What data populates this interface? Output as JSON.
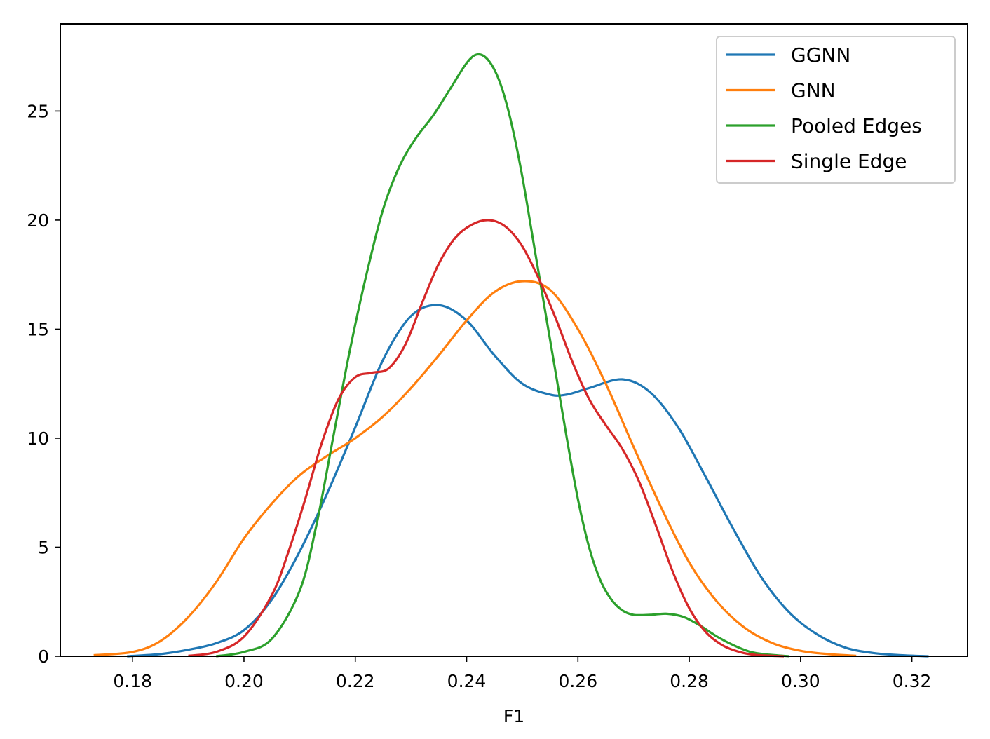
{
  "chart_data": {
    "type": "line",
    "title": "",
    "xlabel": "F1",
    "ylabel": "",
    "xlim": [
      0.167,
      0.33
    ],
    "ylim": [
      0,
      29
    ],
    "grid": false,
    "legend_position": "top-right",
    "x_ticks": [
      0.18,
      0.2,
      0.22,
      0.24,
      0.26,
      0.28,
      0.3,
      0.32
    ],
    "x_tick_labels": [
      "0.18",
      "0.20",
      "0.22",
      "0.24",
      "0.26",
      "0.28",
      "0.30",
      "0.32"
    ],
    "y_ticks": [
      0,
      5,
      10,
      15,
      20,
      25
    ],
    "y_tick_labels": [
      "0",
      "5",
      "10",
      "15",
      "20",
      "25"
    ],
    "series": [
      {
        "name": "GGNN",
        "color": "#1f77b4",
        "x": [
          0.179,
          0.185,
          0.19,
          0.195,
          0.2,
          0.205,
          0.21,
          0.215,
          0.22,
          0.225,
          0.23,
          0.235,
          0.24,
          0.245,
          0.25,
          0.255,
          0.258,
          0.262,
          0.268,
          0.273,
          0.278,
          0.283,
          0.288,
          0.293,
          0.298,
          0.303,
          0.308,
          0.313,
          0.318,
          0.323
        ],
        "y": [
          0.0,
          0.1,
          0.3,
          0.6,
          1.2,
          2.6,
          4.8,
          7.5,
          10.5,
          13.6,
          15.6,
          16.1,
          15.4,
          13.8,
          12.5,
          12.0,
          12.0,
          12.3,
          12.7,
          12.1,
          10.5,
          8.2,
          5.8,
          3.6,
          2.0,
          1.0,
          0.4,
          0.15,
          0.05,
          0.0
        ]
      },
      {
        "name": "GNN",
        "color": "#ff7f0e",
        "x": [
          0.173,
          0.18,
          0.185,
          0.19,
          0.195,
          0.2,
          0.205,
          0.21,
          0.215,
          0.22,
          0.225,
          0.23,
          0.235,
          0.24,
          0.245,
          0.25,
          0.255,
          0.26,
          0.265,
          0.27,
          0.275,
          0.28,
          0.285,
          0.29,
          0.295,
          0.3,
          0.305,
          0.31
        ],
        "y": [
          0.05,
          0.2,
          0.7,
          1.8,
          3.4,
          5.4,
          7.0,
          8.3,
          9.2,
          10.0,
          11.0,
          12.3,
          13.8,
          15.4,
          16.7,
          17.2,
          16.8,
          15.0,
          12.5,
          9.6,
          6.8,
          4.3,
          2.5,
          1.3,
          0.6,
          0.25,
          0.1,
          0.02
        ]
      },
      {
        "name": "Pooled Edges",
        "color": "#2ca02c",
        "x": [
          0.195,
          0.2,
          0.205,
          0.21,
          0.213,
          0.216,
          0.219,
          0.222,
          0.225,
          0.228,
          0.231,
          0.234,
          0.237,
          0.24,
          0.242,
          0.244,
          0.246,
          0.248,
          0.25,
          0.252,
          0.254,
          0.256,
          0.258,
          0.26,
          0.262,
          0.264,
          0.266,
          0.268,
          0.27,
          0.273,
          0.276,
          0.279,
          0.282,
          0.285,
          0.288,
          0.291,
          0.294,
          0.298
        ],
        "y": [
          0.0,
          0.2,
          0.8,
          3.0,
          6.0,
          10.0,
          14.0,
          17.5,
          20.5,
          22.5,
          23.8,
          24.8,
          26.0,
          27.2,
          27.6,
          27.3,
          26.3,
          24.5,
          22.0,
          19.0,
          16.0,
          13.0,
          10.0,
          7.2,
          5.0,
          3.5,
          2.6,
          2.1,
          1.9,
          1.9,
          1.95,
          1.8,
          1.4,
          0.9,
          0.5,
          0.2,
          0.08,
          0.0
        ]
      },
      {
        "name": "Single Edge",
        "color": "#d62728",
        "x": [
          0.19,
          0.195,
          0.2,
          0.205,
          0.208,
          0.211,
          0.214,
          0.217,
          0.22,
          0.223,
          0.226,
          0.229,
          0.232,
          0.235,
          0.238,
          0.241,
          0.244,
          0.247,
          0.25,
          0.253,
          0.256,
          0.259,
          0.262,
          0.265,
          0.268,
          0.271,
          0.274,
          0.277,
          0.28,
          0.283,
          0.286,
          0.289,
          0.292,
          0.297
        ],
        "y": [
          0.02,
          0.2,
          0.9,
          2.8,
          4.8,
          7.2,
          9.8,
          11.8,
          12.8,
          13.0,
          13.2,
          14.3,
          16.2,
          18.0,
          19.2,
          19.8,
          20.0,
          19.7,
          18.8,
          17.3,
          15.5,
          13.5,
          11.8,
          10.6,
          9.5,
          8.0,
          6.0,
          3.9,
          2.2,
          1.1,
          0.5,
          0.2,
          0.06,
          0.0
        ]
      }
    ]
  }
}
